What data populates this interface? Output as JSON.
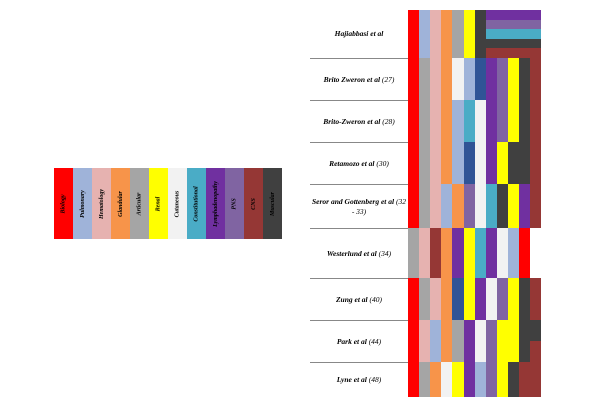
{
  "colors": {
    "Biology": "#ff0000",
    "Pulmonary": "#9fb3d9",
    "Hematology": "#e6b2b0",
    "Glandular": "#f7944a",
    "Articular": "#a5a5a5",
    "Renal": "#ffff00",
    "Cutaneous": "#f2f2f2",
    "Constitutional": "#4aacc6",
    "Lymphadenopathy": "#7030a0",
    "PNS": "#8064a2",
    "CNS": "#953735",
    "Muscular": "#404040",
    "DarkBlue": "#305496",
    "White": "#ffffff",
    "Separator": "#ffffff"
  },
  "legend": {
    "items": [
      {
        "label": "Biology",
        "color": "Biology"
      },
      {
        "label": "Pulmonary",
        "color": "Pulmonary"
      },
      {
        "label": "Hematology",
        "color": "Hematology"
      },
      {
        "label": "Glandular",
        "color": "Glandular"
      },
      {
        "label": "Articular",
        "color": "Articular"
      },
      {
        "label": "Renal",
        "color": "Renal"
      },
      {
        "label": "Cutaneous",
        "color": "Cutaneous"
      },
      {
        "label": "Constitutional",
        "color": "Constitutional"
      },
      {
        "label": "Lymphadenopathy",
        "color": "Lymphadenopathy"
      },
      {
        "label": "PNS",
        "color": "PNS"
      },
      {
        "label": "CNS",
        "color": "CNS"
      },
      {
        "label": "Muscular",
        "color": "Muscular"
      }
    ]
  },
  "studies": [
    {
      "name": "Hajiabbasi et al",
      "ref": ""
    },
    {
      "name": "Brito Zweron et al",
      "ref": "(27)"
    },
    {
      "name": "Brito-Zweron et al",
      "ref": "(28)"
    },
    {
      "name": "Retamozo et al",
      "ref": "(30)"
    },
    {
      "name": "Seror and Gottenberg et al",
      "ref": "(32 - 33)"
    },
    {
      "name": "Westerlund  et al",
      "ref": "(34)"
    },
    {
      "name": "Zung et al",
      "ref": "(40)"
    },
    {
      "name": "Park et al",
      "ref": "(44)"
    },
    {
      "name": "Lyne et al",
      "ref": "(48)"
    }
  ],
  "matrix": [
    {
      "top": 0,
      "height": 48,
      "cols": [
        [
          "Biology"
        ],
        [
          "Pulmonary"
        ],
        [
          "Hematology"
        ],
        [
          "Glandular"
        ],
        [
          "Articular"
        ],
        [
          "Renal"
        ],
        [
          "Muscular"
        ],
        [
          "Lymphadenopathy",
          "PNS",
          "Constitutional",
          "Muscular",
          "CNS"
        ],
        [
          "Lymphadenopathy",
          "PNS",
          "Constitutional",
          "Muscular",
          "CNS"
        ],
        [
          "Lymphadenopathy",
          "PNS",
          "Constitutional",
          "Muscular",
          "CNS"
        ],
        [
          "Lymphadenopathy",
          "PNS",
          "Constitutional",
          "Muscular",
          "CNS"
        ],
        [
          "Lymphadenopathy",
          "PNS",
          "Constitutional",
          "Muscular",
          "CNS"
        ]
      ]
    },
    {
      "top": 48,
      "height": 42,
      "cols": [
        [
          "Biology"
        ],
        [
          "Articular"
        ],
        [
          "Hematology"
        ],
        [
          "Glandular"
        ],
        [
          "Cutaneous"
        ],
        [
          "Pulmonary"
        ],
        [
          "DarkBlue"
        ],
        [
          "Lymphadenopathy"
        ],
        [
          "PNS"
        ],
        [
          "Renal"
        ],
        [
          "Muscular"
        ],
        [
          "CNS"
        ]
      ]
    },
    {
      "top": 90,
      "height": 42,
      "cols": [
        [
          "Biology"
        ],
        [
          "Articular"
        ],
        [
          "Hematology"
        ],
        [
          "Glandular"
        ],
        [
          "Pulmonary"
        ],
        [
          "Constitutional"
        ],
        [
          "Cutaneous"
        ],
        [
          "Lymphadenopathy"
        ],
        [
          "PNS"
        ],
        [
          "Renal"
        ],
        [
          "Muscular"
        ],
        [
          "CNS"
        ]
      ]
    },
    {
      "top": 132,
      "height": 42,
      "cols": [
        [
          "Biology"
        ],
        [
          "Articular"
        ],
        [
          "Hematology"
        ],
        [
          "Glandular"
        ],
        [
          "Pulmonary"
        ],
        [
          "DarkBlue"
        ],
        [
          "Cutaneous"
        ],
        [
          "Lymphadenopathy"
        ],
        [
          "Renal"
        ],
        [
          "Muscular"
        ],
        [
          "Muscular"
        ],
        [
          "CNS"
        ]
      ]
    },
    {
      "top": 174,
      "height": 44,
      "cols": [
        [
          "Biology"
        ],
        [
          "Articular"
        ],
        [
          "Hematology"
        ],
        [
          "Pulmonary"
        ],
        [
          "Glandular"
        ],
        [
          "PNS"
        ],
        [
          "Cutaneous"
        ],
        [
          "Constitutional"
        ],
        [
          "Muscular"
        ],
        [
          "Renal"
        ],
        [
          "Lymphadenopathy"
        ],
        [
          "CNS"
        ]
      ]
    },
    {
      "top": 218,
      "height": 50,
      "cols": [
        [
          "Articular"
        ],
        [
          "Hematology"
        ],
        [
          "CNS"
        ],
        [
          "Glandular"
        ],
        [
          "Lymphadenopathy"
        ],
        [
          "Renal"
        ],
        [
          "Constitutional"
        ],
        [
          "Lymphadenopathy"
        ],
        [
          "Cutaneous"
        ],
        [
          "Pulmonary"
        ],
        [
          "Biology"
        ],
        [
          "White"
        ]
      ]
    },
    {
      "top": 268,
      "height": 42,
      "cols": [
        [
          "Biology"
        ],
        [
          "Articular"
        ],
        [
          "Hematology"
        ],
        [
          "Glandular"
        ],
        [
          "DarkBlue"
        ],
        [
          "Renal"
        ],
        [
          "Lymphadenopathy"
        ],
        [
          "Cutaneous"
        ],
        [
          "PNS"
        ],
        [
          "Renal"
        ],
        [
          "Muscular"
        ],
        [
          "CNS"
        ]
      ]
    },
    {
      "top": 310,
      "height": 42,
      "cols": [
        [
          "Biology"
        ],
        [
          "Hematology"
        ],
        [
          "Pulmonary"
        ],
        [
          "Glandular"
        ],
        [
          "Articular"
        ],
        [
          "Lymphadenopathy"
        ],
        [
          "Cutaneous"
        ],
        [
          "PNS"
        ],
        [
          "Renal"
        ],
        [
          "Renal"
        ],
        [
          "Muscular"
        ],
        [
          "Muscular",
          "CNS"
        ]
      ]
    },
    {
      "top": 352,
      "height": 35,
      "cols": [
        [
          "Biology"
        ],
        [
          "Articular"
        ],
        [
          "Glandular"
        ],
        [
          "Cutaneous"
        ],
        [
          "Renal"
        ],
        [
          "Lymphadenopathy"
        ],
        [
          "Pulmonary"
        ],
        [
          "PNS"
        ],
        [
          "Renal"
        ],
        [
          "Muscular"
        ],
        [
          "CNS"
        ],
        [
          "CNS"
        ]
      ]
    }
  ]
}
